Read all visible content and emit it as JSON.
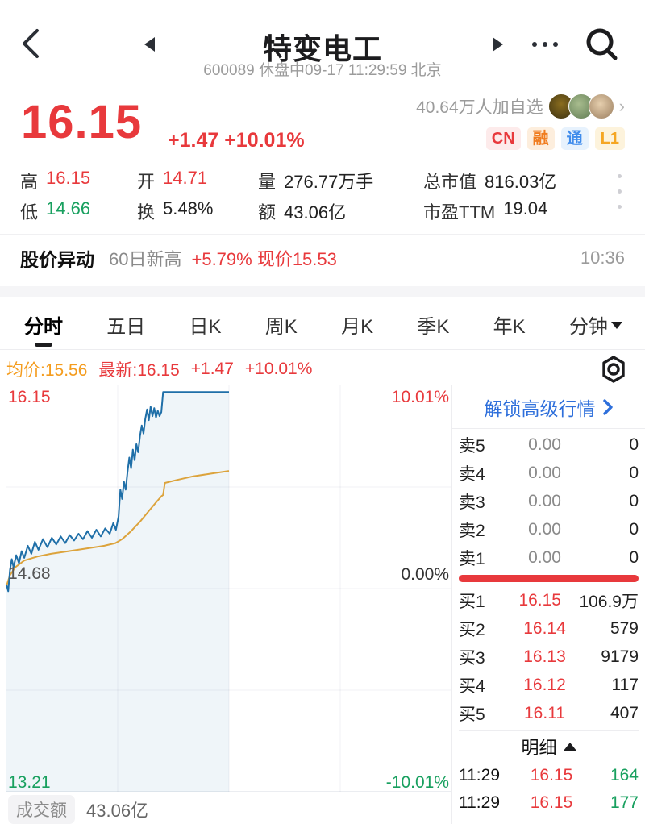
{
  "header": {
    "title": "特变电工",
    "subtitle": "600089 休盘中09-17 11:29:59 北京"
  },
  "follow": {
    "text": "40.64万人加自选"
  },
  "badges": {
    "cn": "CN",
    "rong": "融",
    "tong": "通",
    "l1": "L1"
  },
  "price": {
    "last": "16.15",
    "change": "+1.47 +10.01%"
  },
  "stats": {
    "high_label": "高",
    "high": "16.15",
    "open_label": "开",
    "open": "14.71",
    "volume_label": "量",
    "volume": "276.77万手",
    "market_cap_label": "总市值",
    "market_cap": "816.03亿",
    "low_label": "低",
    "low": "14.66",
    "turnover_label": "换",
    "turnover": "5.48%",
    "amount_label": "额",
    "amount": "43.06亿",
    "pe_label": "市盈TTM",
    "pe": "19.04"
  },
  "alert": {
    "title": "股价异动",
    "desc": "60日新高",
    "change": "+5.79% 现价15.53",
    "time": "10:36"
  },
  "tabs": [
    "分时",
    "五日",
    "日K",
    "周K",
    "月K",
    "季K",
    "年K",
    "分钟"
  ],
  "quote_line": {
    "avg": "均价:15.56",
    "last": "最新:16.15",
    "change": "+1.47",
    "pct": "+10.01%"
  },
  "chart_labels": {
    "top_price": "16.15",
    "mid_price": "14.68",
    "bottom_price": "13.21",
    "top_pct": "10.01%",
    "mid_pct": "0.00%",
    "bottom_pct": "-10.01%"
  },
  "panel": {
    "unlock": "解锁高级行情",
    "sells": [
      {
        "label": "卖5",
        "price": "0.00",
        "qty": "0"
      },
      {
        "label": "卖4",
        "price": "0.00",
        "qty": "0"
      },
      {
        "label": "卖3",
        "price": "0.00",
        "qty": "0"
      },
      {
        "label": "卖2",
        "price": "0.00",
        "qty": "0"
      },
      {
        "label": "卖1",
        "price": "0.00",
        "qty": "0"
      }
    ],
    "buys": [
      {
        "label": "买1",
        "price": "16.15",
        "qty": "106.9万"
      },
      {
        "label": "买2",
        "price": "16.14",
        "qty": "579"
      },
      {
        "label": "买3",
        "price": "16.13",
        "qty": "9179"
      },
      {
        "label": "买4",
        "price": "16.12",
        "qty": "117"
      },
      {
        "label": "买5",
        "price": "16.11",
        "qty": "407"
      }
    ],
    "detail_title": "明细",
    "details": [
      {
        "time": "11:29",
        "price": "16.15",
        "qty": "164"
      },
      {
        "time": "11:29",
        "price": "16.15",
        "qty": "177"
      }
    ]
  },
  "footer": {
    "amount_label": "成交额",
    "amount": "43.06亿"
  },
  "colors": {
    "up_red": "#e8393c",
    "down_green": "#18a05f",
    "avg_orange": "#dca33c",
    "price_line_blue": "#1f6fa8",
    "link_blue": "#2e6fdb"
  },
  "chart_data": {
    "type": "line",
    "title": "分时 (minute chart)",
    "x_axis": "trading time 09:30–15:00, current time 11:30 (half of session)",
    "y_axis_price": [
      13.21,
      14.68,
      16.15
    ],
    "y_axis_pct": [
      "-10.01%",
      "0.00%",
      "10.01%"
    ],
    "prev_close": 14.68,
    "price_max_map": 16.2,
    "price_min_map": 13.16,
    "grid": {
      "v_fracs": [
        0.25,
        0.5,
        0.75
      ],
      "h_fracs": [
        0.25,
        0.5,
        0.75
      ]
    },
    "series": [
      {
        "name": "price",
        "points": [
          [
            0.0,
            14.71
          ],
          [
            0.004,
            14.66
          ],
          [
            0.008,
            14.82
          ],
          [
            0.012,
            14.9
          ],
          [
            0.016,
            14.84
          ],
          [
            0.022,
            14.93
          ],
          [
            0.028,
            14.87
          ],
          [
            0.034,
            14.96
          ],
          [
            0.04,
            14.91
          ],
          [
            0.048,
            15.0
          ],
          [
            0.056,
            14.94
          ],
          [
            0.064,
            15.03
          ],
          [
            0.072,
            14.97
          ],
          [
            0.082,
            15.05
          ],
          [
            0.092,
            14.99
          ],
          [
            0.102,
            15.06
          ],
          [
            0.112,
            15.01
          ],
          [
            0.122,
            15.07
          ],
          [
            0.132,
            15.02
          ],
          [
            0.142,
            15.08
          ],
          [
            0.152,
            15.04
          ],
          [
            0.162,
            15.09
          ],
          [
            0.172,
            15.05
          ],
          [
            0.182,
            15.11
          ],
          [
            0.192,
            15.06
          ],
          [
            0.202,
            15.12
          ],
          [
            0.212,
            15.07
          ],
          [
            0.222,
            15.13
          ],
          [
            0.232,
            15.09
          ],
          [
            0.24,
            15.17
          ],
          [
            0.246,
            15.12
          ],
          [
            0.252,
            15.22
          ],
          [
            0.256,
            15.42
          ],
          [
            0.26,
            15.35
          ],
          [
            0.264,
            15.48
          ],
          [
            0.268,
            15.42
          ],
          [
            0.272,
            15.55
          ],
          [
            0.276,
            15.66
          ],
          [
            0.28,
            15.58
          ],
          [
            0.284,
            15.72
          ],
          [
            0.288,
            15.64
          ],
          [
            0.292,
            15.76
          ],
          [
            0.296,
            15.7
          ],
          [
            0.3,
            15.82
          ],
          [
            0.304,
            15.9
          ],
          [
            0.308,
            15.84
          ],
          [
            0.312,
            15.95
          ],
          [
            0.316,
            16.02
          ],
          [
            0.32,
            15.94
          ],
          [
            0.324,
            16.04
          ],
          [
            0.328,
            15.97
          ],
          [
            0.332,
            16.03
          ],
          [
            0.336,
            15.96
          ],
          [
            0.34,
            16.01
          ],
          [
            0.344,
            15.97
          ],
          [
            0.348,
            16.0
          ],
          [
            0.352,
            16.15
          ],
          [
            0.5,
            16.15
          ]
        ]
      },
      {
        "name": "average",
        "points": [
          [
            0.0,
            14.7
          ],
          [
            0.008,
            14.78
          ],
          [
            0.02,
            14.84
          ],
          [
            0.04,
            14.89
          ],
          [
            0.07,
            14.92
          ],
          [
            0.1,
            14.94
          ],
          [
            0.14,
            14.96
          ],
          [
            0.18,
            14.98
          ],
          [
            0.22,
            15.0
          ],
          [
            0.245,
            15.02
          ],
          [
            0.26,
            15.05
          ],
          [
            0.28,
            15.11
          ],
          [
            0.3,
            15.18
          ],
          [
            0.32,
            15.26
          ],
          [
            0.335,
            15.32
          ],
          [
            0.348,
            15.37
          ],
          [
            0.352,
            15.38
          ],
          [
            0.356,
            15.47
          ],
          [
            0.38,
            15.49
          ],
          [
            0.42,
            15.52
          ],
          [
            0.46,
            15.54
          ],
          [
            0.5,
            15.56
          ]
        ]
      }
    ]
  }
}
